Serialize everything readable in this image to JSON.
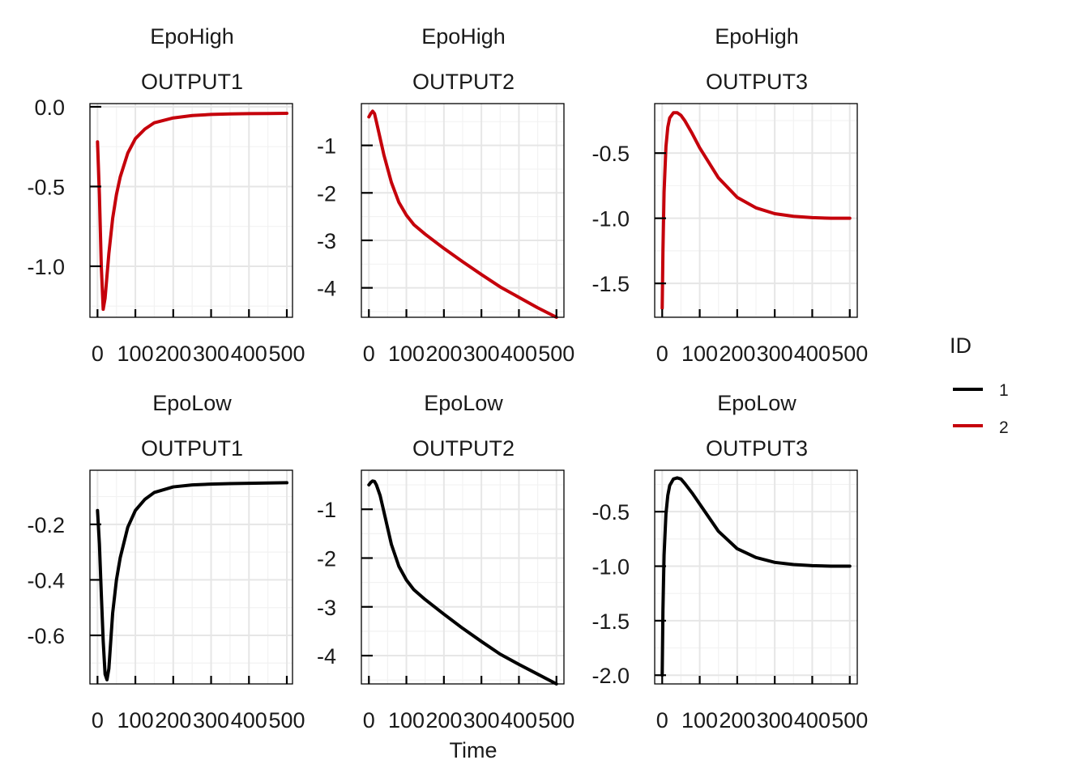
{
  "colors": {
    "1": "#000000",
    "2": "#c5000b"
  },
  "legend": {
    "title": "ID",
    "items": [
      "1",
      "2"
    ]
  },
  "xlabel": "Time",
  "chart_data": [
    {
      "type": "line",
      "facet": [
        "EpoHigh",
        "OUTPUT1"
      ],
      "id": "2",
      "xlim": [
        -20,
        515
      ],
      "ylim": [
        -1.32,
        0.02
      ],
      "x_ticks": [
        0,
        100,
        200,
        300,
        400,
        500
      ],
      "x_tick_labels": [
        "0",
        "100",
        "200",
        "300",
        "400",
        "500"
      ],
      "y_ticks": [
        0.0,
        -0.5,
        -1.0
      ],
      "y_tick_labels": [
        "0.0",
        "-0.5",
        "-1.0"
      ],
      "x": [
        0,
        5,
        10,
        15,
        20,
        30,
        40,
        50,
        60,
        80,
        100,
        125,
        150,
        200,
        250,
        300,
        350,
        400,
        450,
        500
      ],
      "y": [
        -0.22,
        -0.55,
        -1.0,
        -1.27,
        -1.2,
        -0.92,
        -0.7,
        -0.55,
        -0.44,
        -0.29,
        -0.2,
        -0.14,
        -0.1,
        -0.07,
        -0.055,
        -0.048,
        -0.045,
        -0.043,
        -0.042,
        -0.041
      ]
    },
    {
      "type": "line",
      "facet": [
        "EpoHigh",
        "OUTPUT2"
      ],
      "id": "2",
      "xlim": [
        -20,
        520
      ],
      "ylim": [
        -4.62,
        -0.12
      ],
      "x_ticks": [
        0,
        100,
        200,
        300,
        400,
        500
      ],
      "x_tick_labels": [
        "0",
        "100",
        "200",
        "300",
        "400",
        "500"
      ],
      "y_ticks": [
        -1,
        -2,
        -3,
        -4
      ],
      "y_tick_labels": [
        "-1",
        "-2",
        "-3",
        "-4"
      ],
      "x": [
        0,
        5,
        10,
        15,
        20,
        30,
        40,
        60,
        80,
        100,
        120,
        150,
        200,
        250,
        300,
        350,
        400,
        450,
        500
      ],
      "y": [
        -0.4,
        -0.33,
        -0.28,
        -0.33,
        -0.5,
        -0.85,
        -1.2,
        -1.78,
        -2.2,
        -2.47,
        -2.67,
        -2.87,
        -3.17,
        -3.45,
        -3.72,
        -3.98,
        -4.2,
        -4.42,
        -4.62
      ]
    },
    {
      "type": "line",
      "facet": [
        "EpoHigh",
        "OUTPUT3"
      ],
      "id": "2",
      "xlim": [
        -20,
        520
      ],
      "ylim": [
        -1.76,
        -0.12
      ],
      "x_ticks": [
        0,
        100,
        200,
        300,
        400,
        500
      ],
      "x_tick_labels": [
        "0",
        "100",
        "200",
        "300",
        "400",
        "500"
      ],
      "y_ticks": [
        -0.5,
        -1.0,
        -1.5
      ],
      "y_tick_labels": [
        "-0.5",
        "-1.0",
        "-1.5"
      ],
      "x": [
        0,
        2,
        5,
        10,
        15,
        20,
        30,
        40,
        50,
        60,
        80,
        100,
        150,
        200,
        250,
        300,
        350,
        400,
        450,
        500
      ],
      "y": [
        -1.69,
        -1.25,
        -0.8,
        -0.45,
        -0.3,
        -0.23,
        -0.19,
        -0.19,
        -0.21,
        -0.25,
        -0.35,
        -0.46,
        -0.69,
        -0.84,
        -0.92,
        -0.965,
        -0.985,
        -0.995,
        -1.0,
        -1.0
      ]
    },
    {
      "type": "line",
      "facet": [
        "EpoLow",
        "OUTPUT1"
      ],
      "id": "1",
      "xlim": [
        -20,
        515
      ],
      "ylim": [
        -0.775,
        -0.005
      ],
      "x_ticks": [
        0,
        100,
        200,
        300,
        400,
        500
      ],
      "x_tick_labels": [
        "0",
        "100",
        "200",
        "300",
        "400",
        "500"
      ],
      "y_ticks": [
        -0.2,
        -0.4,
        -0.6
      ],
      "y_tick_labels": [
        "-0.2",
        "-0.4",
        "-0.6"
      ],
      "x": [
        0,
        5,
        10,
        15,
        20,
        25,
        30,
        35,
        40,
        50,
        60,
        80,
        100,
        125,
        150,
        200,
        250,
        300,
        350,
        400,
        450,
        500
      ],
      "y": [
        -0.15,
        -0.27,
        -0.45,
        -0.62,
        -0.74,
        -0.76,
        -0.72,
        -0.62,
        -0.52,
        -0.4,
        -0.32,
        -0.21,
        -0.15,
        -0.11,
        -0.085,
        -0.065,
        -0.058,
        -0.055,
        -0.053,
        -0.052,
        -0.051,
        -0.05
      ]
    },
    {
      "type": "line",
      "facet": [
        "EpoLow",
        "OUTPUT2"
      ],
      "id": "1",
      "xlim": [
        -20,
        520
      ],
      "ylim": [
        -4.58,
        -0.2
      ],
      "x_ticks": [
        0,
        100,
        200,
        300,
        400,
        500
      ],
      "x_tick_labels": [
        "0",
        "100",
        "200",
        "300",
        "400",
        "500"
      ],
      "y_ticks": [
        -1,
        -2,
        -3,
        -4
      ],
      "y_tick_labels": [
        "-1",
        "-2",
        "-3",
        "-4"
      ],
      "x": [
        0,
        5,
        10,
        15,
        20,
        30,
        40,
        60,
        80,
        100,
        120,
        150,
        200,
        250,
        300,
        350,
        400,
        450,
        500
      ],
      "y": [
        -0.5,
        -0.45,
        -0.42,
        -0.43,
        -0.5,
        -0.72,
        -1.05,
        -1.72,
        -2.17,
        -2.45,
        -2.65,
        -2.85,
        -3.15,
        -3.44,
        -3.71,
        -3.97,
        -4.18,
        -4.38,
        -4.58
      ]
    },
    {
      "type": "line",
      "facet": [
        "EpoLow",
        "OUTPUT3"
      ],
      "id": "1",
      "xlim": [
        -20,
        520
      ],
      "ylim": [
        -2.08,
        -0.12
      ],
      "x_ticks": [
        0,
        100,
        200,
        300,
        400,
        500
      ],
      "x_tick_labels": [
        "0",
        "100",
        "200",
        "300",
        "400",
        "500"
      ],
      "y_ticks": [
        -0.5,
        -1.0,
        -1.5,
        -2.0
      ],
      "y_tick_labels": [
        "-0.5",
        "-1.0",
        "-1.5",
        "-2.0"
      ],
      "x": [
        0,
        2,
        5,
        10,
        15,
        20,
        30,
        40,
        50,
        60,
        80,
        100,
        150,
        200,
        250,
        300,
        350,
        400,
        450,
        500
      ],
      "y": [
        -2.0,
        -1.4,
        -0.9,
        -0.52,
        -0.35,
        -0.26,
        -0.2,
        -0.19,
        -0.2,
        -0.24,
        -0.33,
        -0.43,
        -0.68,
        -0.84,
        -0.92,
        -0.965,
        -0.985,
        -0.995,
        -1.0,
        -1.0
      ]
    }
  ]
}
